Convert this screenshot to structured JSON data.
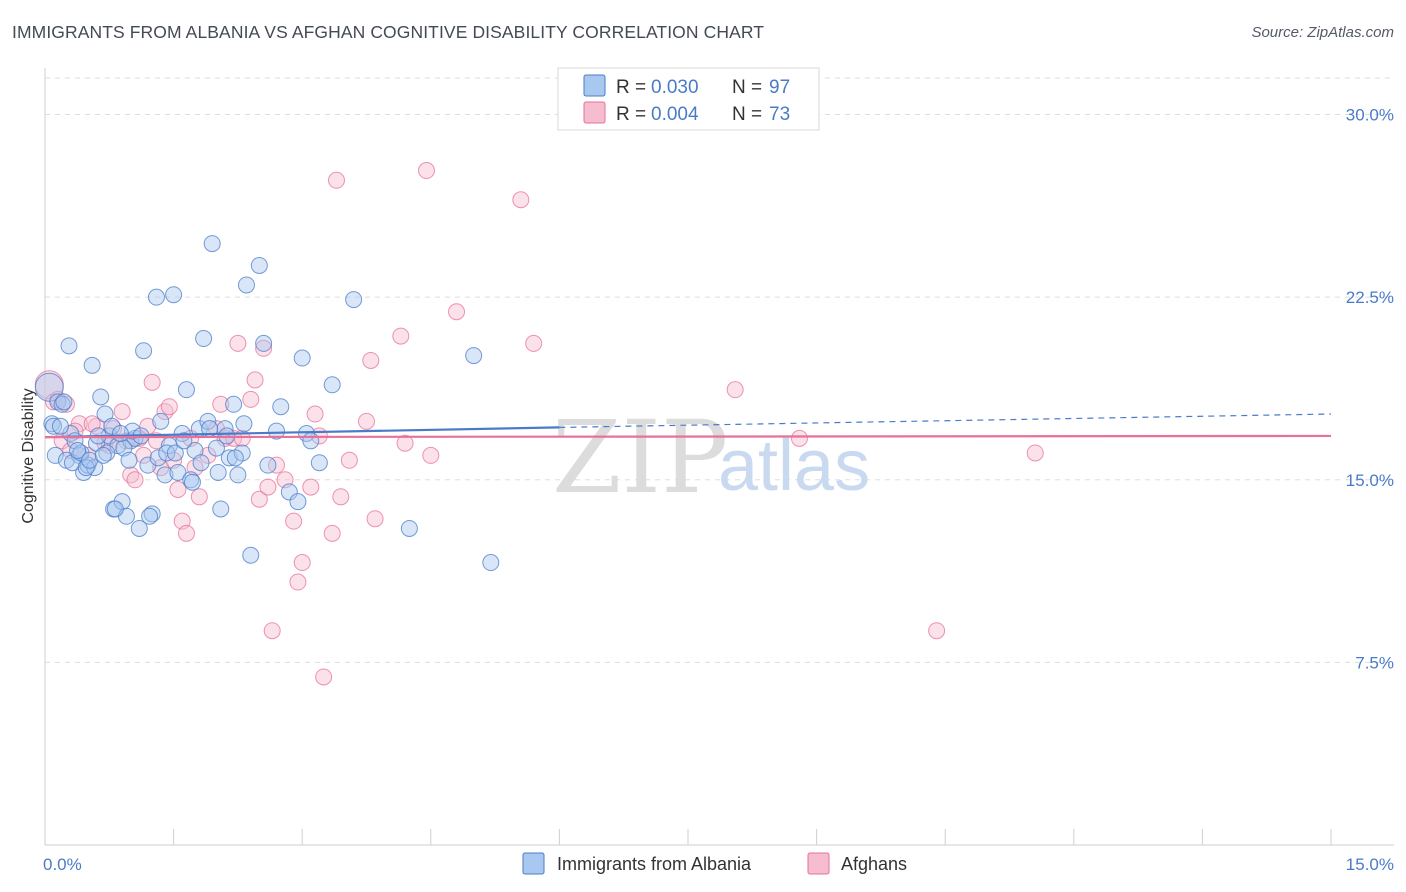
{
  "title": "IMMIGRANTS FROM ALBANIA VS AFGHAN COGNITIVE DISABILITY CORRELATION CHART",
  "source": "Source: ZipAtlas.com",
  "colors": {
    "blue": "#4a7bc8",
    "blue_fill": "#a9c8ef",
    "pink": "#e8709a",
    "pink_fill": "#f6bcd0",
    "grid": "#dddddd",
    "tick_text": "#4a7bc8"
  },
  "chart_data": {
    "type": "scatter",
    "title": "IMMIGRANTS FROM ALBANIA VS AFGHAN COGNITIVE DISABILITY CORRELATION CHART",
    "xlabel": "",
    "ylabel": "Cognitive Disability",
    "xlim": [
      0,
      15
    ],
    "ylim": [
      0,
      31.5
    ],
    "x_tick_labels": [
      "0.0%",
      "15.0%"
    ],
    "y_ticks": [
      7.5,
      15.0,
      22.5,
      30.0
    ],
    "y_tick_labels": [
      "7.5%",
      "15.0%",
      "22.5%",
      "30.0%"
    ],
    "grid": true,
    "legend_position": "top-center",
    "watermark": {
      "zip": "ZIP",
      "atlas": "atlas"
    },
    "legend": [
      {
        "r_label": "R = ",
        "r_value": "0.030",
        "n_label": "N = ",
        "n_value": "97"
      },
      {
        "r_label": "R = ",
        "r_value": "0.004",
        "n_label": "N = ",
        "n_value": "73"
      }
    ],
    "series": [
      {
        "name": "Immigrants from Albania",
        "color": "#4a7bc8",
        "trend": {
          "x0": 0.0,
          "y0": 16.75,
          "x1": 6.0,
          "y1": 17.15,
          "dash_to_x": 15.0,
          "dash_to_y": 17.7
        },
        "points": [
          [
            0.05,
            18.8
          ],
          [
            0.08,
            17.3
          ],
          [
            0.1,
            17.2
          ],
          [
            0.12,
            16.0
          ],
          [
            0.15,
            18.2
          ],
          [
            0.2,
            18.1
          ],
          [
            0.25,
            15.8
          ],
          [
            0.28,
            20.5
          ],
          [
            0.3,
            16.9
          ],
          [
            0.35,
            16.6
          ],
          [
            0.4,
            16.0
          ],
          [
            0.45,
            15.3
          ],
          [
            0.5,
            15.6
          ],
          [
            0.55,
            19.7
          ],
          [
            0.6,
            16.5
          ],
          [
            0.65,
            18.4
          ],
          [
            0.7,
            17.7
          ],
          [
            0.75,
            16.8
          ],
          [
            0.8,
            13.8
          ],
          [
            0.85,
            16.4
          ],
          [
            0.9,
            14.1
          ],
          [
            0.95,
            13.5
          ],
          [
            1.0,
            16.6
          ],
          [
            1.05,
            16.7
          ],
          [
            1.1,
            13.0
          ],
          [
            1.15,
            20.3
          ],
          [
            1.2,
            15.6
          ],
          [
            1.25,
            13.6
          ],
          [
            1.3,
            22.5
          ],
          [
            1.35,
            17.4
          ],
          [
            1.4,
            15.2
          ],
          [
            1.45,
            16.4
          ],
          [
            1.5,
            22.6
          ],
          [
            1.55,
            15.3
          ],
          [
            1.6,
            16.9
          ],
          [
            1.65,
            18.7
          ],
          [
            1.7,
            15.0
          ],
          [
            1.75,
            16.2
          ],
          [
            1.8,
            17.1
          ],
          [
            1.85,
            20.8
          ],
          [
            1.9,
            17.4
          ],
          [
            1.95,
            24.7
          ],
          [
            2.0,
            16.3
          ],
          [
            2.05,
            13.8
          ],
          [
            2.1,
            17.1
          ],
          [
            2.15,
            15.9
          ],
          [
            2.2,
            18.1
          ],
          [
            2.25,
            15.2
          ],
          [
            2.3,
            16.1
          ],
          [
            2.35,
            23.0
          ],
          [
            2.4,
            11.9
          ],
          [
            2.5,
            23.8
          ],
          [
            2.55,
            20.6
          ],
          [
            2.6,
            15.6
          ],
          [
            2.7,
            17.0
          ],
          [
            2.75,
            18.0
          ],
          [
            2.85,
            14.5
          ],
          [
            2.95,
            14.1
          ],
          [
            3.0,
            20.0
          ],
          [
            3.05,
            16.9
          ],
          [
            3.1,
            16.6
          ],
          [
            3.2,
            15.7
          ],
          [
            3.35,
            18.9
          ],
          [
            3.6,
            22.4
          ],
          [
            4.25,
            13.0
          ],
          [
            5.0,
            20.1
          ],
          [
            5.2,
            11.6
          ],
          [
            0.18,
            17.2
          ],
          [
            0.32,
            15.7
          ],
          [
            0.42,
            16.1
          ],
          [
            0.58,
            15.5
          ],
          [
            0.62,
            16.8
          ],
          [
            0.72,
            16.1
          ],
          [
            0.82,
            13.8
          ],
          [
            0.92,
            16.3
          ],
          [
            1.02,
            17.0
          ],
          [
            1.12,
            16.8
          ],
          [
            1.22,
            13.5
          ],
          [
            1.32,
            15.9
          ],
          [
            1.42,
            16.1
          ],
          [
            1.52,
            16.1
          ],
          [
            1.62,
            16.6
          ],
          [
            1.72,
            14.9
          ],
          [
            1.82,
            15.7
          ],
          [
            1.92,
            17.1
          ],
          [
            2.02,
            15.3
          ],
          [
            2.12,
            16.8
          ],
          [
            2.22,
            15.9
          ],
          [
            2.32,
            17.3
          ],
          [
            0.22,
            18.2
          ],
          [
            0.38,
            16.2
          ],
          [
            0.48,
            15.5
          ],
          [
            0.52,
            15.8
          ],
          [
            0.68,
            16.0
          ],
          [
            0.78,
            17.2
          ],
          [
            0.88,
            16.9
          ],
          [
            0.98,
            15.8
          ]
        ]
      },
      {
        "name": "Afghans",
        "color": "#e8709a",
        "trend": {
          "x0": 0.0,
          "y0": 16.75,
          "x1": 15.0,
          "y1": 16.8
        },
        "points": [
          [
            0.05,
            18.9
          ],
          [
            0.1,
            18.2
          ],
          [
            0.15,
            18.3
          ],
          [
            0.2,
            16.6
          ],
          [
            0.3,
            16.2
          ],
          [
            0.4,
            17.3
          ],
          [
            0.5,
            16.0
          ],
          [
            0.6,
            17.2
          ],
          [
            0.7,
            16.5
          ],
          [
            0.8,
            17.1
          ],
          [
            0.9,
            17.8
          ],
          [
            1.0,
            15.2
          ],
          [
            1.1,
            16.7
          ],
          [
            1.2,
            17.2
          ],
          [
            1.25,
            19.0
          ],
          [
            1.3,
            16.6
          ],
          [
            1.35,
            15.5
          ],
          [
            1.4,
            17.8
          ],
          [
            1.45,
            18.0
          ],
          [
            1.5,
            15.8
          ],
          [
            1.55,
            14.6
          ],
          [
            1.6,
            13.3
          ],
          [
            1.65,
            12.8
          ],
          [
            1.7,
            16.7
          ],
          [
            1.8,
            14.3
          ],
          [
            1.9,
            16.0
          ],
          [
            2.0,
            17.1
          ],
          [
            2.05,
            18.1
          ],
          [
            2.1,
            16.7
          ],
          [
            2.2,
            16.7
          ],
          [
            2.25,
            20.6
          ],
          [
            2.3,
            16.7
          ],
          [
            2.4,
            18.3
          ],
          [
            2.45,
            19.1
          ],
          [
            2.5,
            14.2
          ],
          [
            2.55,
            20.4
          ],
          [
            2.6,
            14.7
          ],
          [
            2.65,
            8.8
          ],
          [
            2.7,
            15.6
          ],
          [
            2.8,
            15.0
          ],
          [
            2.9,
            13.3
          ],
          [
            2.95,
            10.8
          ],
          [
            3.0,
            11.6
          ],
          [
            3.1,
            14.7
          ],
          [
            3.15,
            17.7
          ],
          [
            3.2,
            16.8
          ],
          [
            3.25,
            6.9
          ],
          [
            3.35,
            12.8
          ],
          [
            3.4,
            27.3
          ],
          [
            3.45,
            14.3
          ],
          [
            3.55,
            15.8
          ],
          [
            3.75,
            17.4
          ],
          [
            3.8,
            19.9
          ],
          [
            3.85,
            13.4
          ],
          [
            4.15,
            20.9
          ],
          [
            4.2,
            16.5
          ],
          [
            4.45,
            27.7
          ],
          [
            4.5,
            16.0
          ],
          [
            4.8,
            21.9
          ],
          [
            5.55,
            26.5
          ],
          [
            5.7,
            20.6
          ],
          [
            8.05,
            18.7
          ],
          [
            8.8,
            16.7
          ],
          [
            10.4,
            8.8
          ],
          [
            11.55,
            16.1
          ],
          [
            0.25,
            18.1
          ],
          [
            0.35,
            17.0
          ],
          [
            0.55,
            17.3
          ],
          [
            0.75,
            16.4
          ],
          [
            0.95,
            16.6
          ],
          [
            1.05,
            15.0
          ],
          [
            1.15,
            16.0
          ],
          [
            1.75,
            15.5
          ]
        ]
      }
    ]
  }
}
